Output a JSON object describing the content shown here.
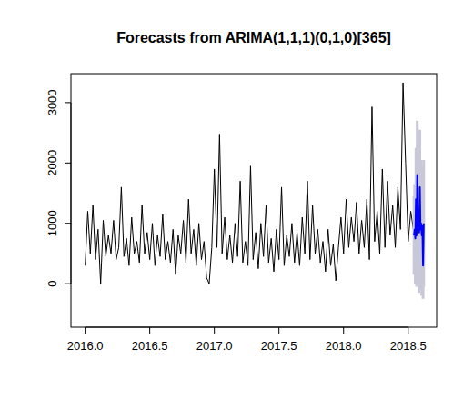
{
  "chart_data": {
    "type": "line",
    "title": "Forecasts from ARIMA(1,1,1)(0,1,0)[365]",
    "xlim": [
      2015.89,
      2018.72
    ],
    "ylim": [
      -720,
      3480
    ],
    "xticks": [
      {
        "value": 2016,
        "label": "2016.0"
      },
      {
        "value": 2016.5,
        "label": "2016.5"
      },
      {
        "value": 2017,
        "label": "2017.0"
      },
      {
        "value": 2017.5,
        "label": "2017.5"
      },
      {
        "value": 2018,
        "label": "2018.0"
      },
      {
        "value": 2018.5,
        "label": "2018.5"
      }
    ],
    "yticks": [
      0,
      1000,
      2000,
      3000
    ],
    "grid": false,
    "series": [
      {
        "color": "#000000",
        "x": [
          2016.0,
          2016.02,
          2016.04,
          2016.06,
          2016.08,
          2016.1,
          2016.12,
          2016.14,
          2016.16,
          2016.18,
          2016.2,
          2016.22,
          2016.24,
          2016.26,
          2016.28,
          2016.3,
          2016.32,
          2016.34,
          2016.36,
          2016.38,
          2016.4,
          2016.42,
          2016.44,
          2016.46,
          2016.48,
          2016.5,
          2016.52,
          2016.54,
          2016.56,
          2016.58,
          2016.6,
          2016.62,
          2016.64,
          2016.66,
          2016.68,
          2016.7,
          2016.72,
          2016.74,
          2016.76,
          2016.78,
          2016.8,
          2016.82,
          2016.84,
          2016.86,
          2016.88,
          2016.9,
          2016.92,
          2016.94,
          2016.96,
          2016.98,
          2017.0,
          2017.02,
          2017.04,
          2017.06,
          2017.08,
          2017.1,
          2017.12,
          2017.14,
          2017.16,
          2017.18,
          2017.2,
          2017.22,
          2017.24,
          2017.26,
          2017.28,
          2017.3,
          2017.32,
          2017.34,
          2017.36,
          2017.38,
          2017.4,
          2017.42,
          2017.44,
          2017.46,
          2017.48,
          2017.5,
          2017.52,
          2017.54,
          2017.56,
          2017.58,
          2017.6,
          2017.62,
          2017.64,
          2017.66,
          2017.68,
          2017.7,
          2017.72,
          2017.74,
          2017.76,
          2017.78,
          2017.8,
          2017.82,
          2017.84,
          2017.86,
          2017.88,
          2017.9,
          2017.92,
          2017.94,
          2017.96,
          2017.98,
          2018.0,
          2018.02,
          2018.04,
          2018.06,
          2018.08,
          2018.1,
          2018.12,
          2018.14,
          2018.16,
          2018.18,
          2018.2,
          2018.22,
          2018.24,
          2018.26,
          2018.28,
          2018.3,
          2018.32,
          2018.34,
          2018.36,
          2018.38,
          2018.4,
          2018.42,
          2018.44,
          2018.46,
          2018.48,
          2018.5,
          2018.52,
          2018.54
        ],
        "values": [
          300,
          1200,
          500,
          1300,
          400,
          900,
          0,
          1050,
          450,
          800,
          500,
          1050,
          400,
          600,
          1600,
          450,
          750,
          300,
          1100,
          500,
          700,
          350,
          1300,
          500,
          850,
          400,
          1000,
          300,
          800,
          450,
          1150,
          400,
          700,
          350,
          900,
          150,
          800,
          500,
          1050,
          350,
          1400,
          500,
          900,
          300,
          1000,
          400,
          700,
          100,
          0,
          600,
          1900,
          600,
          2480,
          500,
          1100,
          400,
          800,
          350,
          1000,
          450,
          1700,
          350,
          700,
          300,
          1950,
          400,
          850,
          250,
          1000,
          450,
          1300,
          350,
          750,
          200,
          900,
          400,
          1600,
          300,
          800,
          450,
          1000,
          350,
          850,
          300,
          1100,
          500,
          1700,
          400,
          1300,
          500,
          900,
          350,
          700,
          200,
          900,
          300,
          650,
          50,
          600,
          1100,
          500,
          1400,
          600,
          1100,
          700,
          1350,
          500,
          1050,
          600,
          1400,
          400,
          2930,
          700,
          1200,
          500,
          1900,
          600,
          1700,
          800,
          1300,
          600,
          1600,
          900,
          3330,
          2000,
          700,
          1200,
          900
        ]
      },
      {
        "color": "#0000ff",
        "x": [
          2018.545,
          2018.55,
          2018.555,
          2018.56,
          2018.565,
          2018.57,
          2018.575,
          2018.58,
          2018.585,
          2018.59,
          2018.595,
          2018.6,
          2018.605,
          2018.61,
          2018.615,
          2018.62
        ],
        "values": [
          800,
          900,
          750,
          1400,
          800,
          1800,
          900,
          1000,
          850,
          1600,
          900,
          1000,
          800,
          950,
          300,
          1000
        ],
        "lower": [
          150,
          150,
          0,
          550,
          -50,
          850,
          0,
          50,
          -150,
          600,
          -100,
          -50,
          -200,
          -100,
          -250,
          -50
        ],
        "upper": [
          1450,
          1650,
          1500,
          2250,
          1650,
          2700,
          1800,
          1950,
          1850,
          2550,
          1900,
          2050,
          1800,
          1950,
          1350,
          2050
        ]
      }
    ]
  }
}
